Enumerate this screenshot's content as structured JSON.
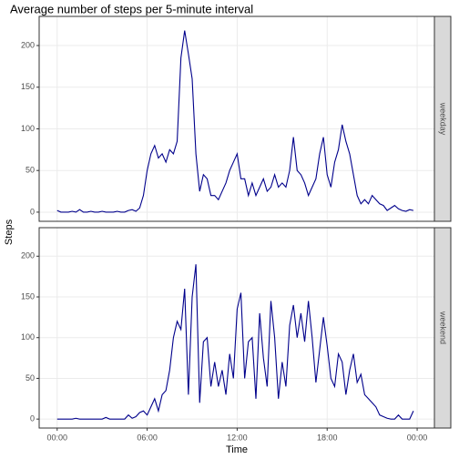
{
  "chart_data": {
    "type": "line",
    "facet": true,
    "title": "Average number of steps per 5-minute interval",
    "x_label": "Time",
    "y_label": "Steps",
    "x": [
      0,
      0.25,
      0.5,
      0.75,
      1,
      1.25,
      1.5,
      1.75,
      2,
      2.25,
      2.5,
      2.75,
      3,
      3.25,
      3.5,
      3.75,
      4,
      4.25,
      4.5,
      4.75,
      5,
      5.25,
      5.5,
      5.75,
      6,
      6.25,
      6.5,
      6.75,
      7,
      7.25,
      7.5,
      7.75,
      8,
      8.25,
      8.5,
      8.75,
      9,
      9.25,
      9.5,
      9.75,
      10,
      10.25,
      10.5,
      10.75,
      11,
      11.25,
      11.5,
      11.75,
      12,
      12.25,
      12.5,
      12.75,
      13,
      13.25,
      13.5,
      13.75,
      14,
      14.25,
      14.5,
      14.75,
      15,
      15.25,
      15.5,
      15.75,
      16,
      16.25,
      16.5,
      16.75,
      17,
      17.25,
      17.5,
      17.75,
      18,
      18.25,
      18.5,
      18.75,
      19,
      19.25,
      19.5,
      19.75,
      20,
      20.25,
      20.5,
      20.75,
      21,
      21.25,
      21.5,
      21.75,
      22,
      22.25,
      22.5,
      22.75,
      23,
      23.25,
      23.5,
      23.75
    ],
    "xlim": [
      -1.2,
      25.15
    ],
    "xticks": [
      {
        "value": 0,
        "label": "00:00"
      },
      {
        "value": 6,
        "label": "06:00"
      },
      {
        "value": 12,
        "label": "12:00"
      },
      {
        "value": 18,
        "label": "18:00"
      },
      {
        "value": 24,
        "label": "00:00"
      }
    ],
    "ylim": [
      -11,
      235
    ],
    "yticks": [
      0,
      50,
      100,
      150,
      200
    ],
    "grid": true,
    "series": [
      {
        "name": "weekday",
        "color": "#00008b",
        "values": [
          2,
          0,
          0,
          0,
          1,
          0,
          3,
          0,
          0,
          1,
          0,
          0,
          1,
          0,
          0,
          0,
          1,
          0,
          0,
          2,
          3,
          1,
          5,
          20,
          50,
          70,
          80,
          65,
          70,
          60,
          75,
          70,
          85,
          185,
          218,
          190,
          160,
          70,
          25,
          45,
          40,
          20,
          20,
          15,
          25,
          35,
          50,
          60,
          70,
          40,
          40,
          20,
          35,
          20,
          30,
          40,
          25,
          30,
          45,
          30,
          35,
          30,
          50,
          90,
          50,
          45,
          35,
          20,
          30,
          40,
          70,
          90,
          45,
          30,
          60,
          75,
          105,
          85,
          70,
          45,
          20,
          10,
          15,
          10,
          20,
          15,
          10,
          8,
          2,
          5,
          8,
          4,
          2,
          1,
          3,
          2
        ]
      },
      {
        "name": "weekend",
        "color": "#00008b",
        "values": [
          0,
          0,
          0,
          0,
          0,
          1,
          0,
          0,
          0,
          0,
          0,
          0,
          0,
          2,
          0,
          0,
          0,
          0,
          0,
          5,
          1,
          3,
          8,
          10,
          5,
          15,
          25,
          10,
          30,
          35,
          60,
          100,
          120,
          110,
          160,
          30,
          150,
          190,
          20,
          95,
          100,
          40,
          70,
          40,
          60,
          30,
          80,
          50,
          135,
          155,
          50,
          95,
          100,
          25,
          130,
          75,
          40,
          145,
          100,
          25,
          70,
          40,
          115,
          140,
          100,
          130,
          95,
          145,
          100,
          45,
          85,
          125,
          90,
          50,
          40,
          80,
          70,
          30,
          60,
          80,
          45,
          55,
          30,
          25,
          20,
          15,
          5,
          3,
          1,
          0,
          0,
          5,
          0,
          0,
          0,
          10
        ]
      }
    ]
  }
}
